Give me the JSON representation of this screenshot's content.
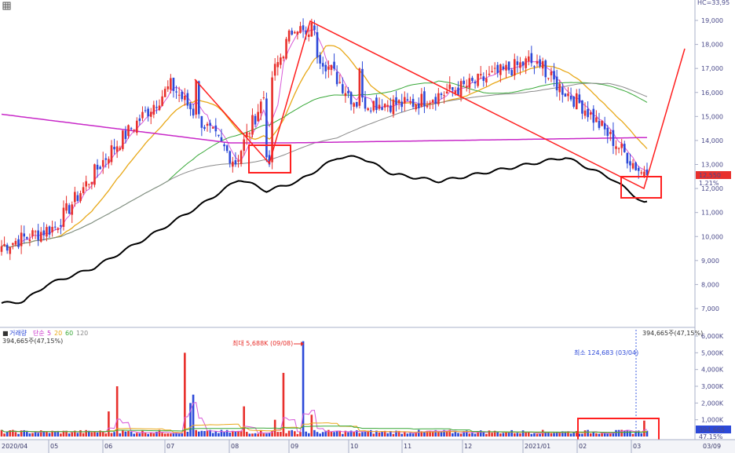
{
  "header": {
    "top_right": "HC=33,95",
    "menu_icon": "grid-menu-icon"
  },
  "volume_header": {
    "label": "거래량",
    "ma_label": "단순",
    "periods": [
      "5",
      "20",
      "60",
      "120"
    ],
    "value_line": "394,665주(47,15%)",
    "right_value": "394,665주(47,15%)"
  },
  "annotations": {
    "max_label": "최대 5,688K (09/08)",
    "min_label": "최소 124,683 (03/04)",
    "price_tag": "12,550",
    "pct_tag": "1.21%",
    "vol_tag": "394,665",
    "vol_pct_tag": "47.15%"
  },
  "colors": {
    "up": "#e8302c",
    "down": "#2c49d8",
    "ma5": "#d85ad8",
    "ma20": "#e8a818",
    "ma60": "#38a838",
    "ma120": "#8a8a8a",
    "magenta_ma": "#c828c8",
    "black_ma": "#000000",
    "annotation_red": "#ff1f1f",
    "axis_text": "#4a4a8a"
  },
  "chart_data": [
    {
      "type": "candlestick",
      "panel": "price",
      "y_ticks": [
        "19,000",
        "18,000",
        "17,000",
        "16,000",
        "15,000",
        "14,000",
        "13,000",
        "12,000",
        "11,000",
        "10,000",
        "9,000",
        "8,000",
        "7,000"
      ],
      "ylim": [
        6500,
        19500
      ],
      "x_labels": [
        "2020/04",
        "05",
        "06",
        "07",
        "08",
        "09",
        "10",
        "11",
        "12",
        "2021/01",
        "02",
        "03",
        "03/09"
      ],
      "last_price": 12550,
      "approx_close_path": [
        {
          "date": "2020/04",
          "value": 9600
        },
        {
          "date": "05",
          "value": 10400
        },
        {
          "date": "06",
          "value": 13500
        },
        {
          "date": "07",
          "value": 16300
        },
        {
          "date": "08",
          "value": 13100
        },
        {
          "date": "09",
          "value": 18900
        },
        {
          "date": "10",
          "value": 15600
        },
        {
          "date": "11",
          "value": 15500
        },
        {
          "date": "12",
          "value": 16300
        },
        {
          "date": "2021/01",
          "value": 17300
        },
        {
          "date": "02",
          "value": 15400
        },
        {
          "date": "03",
          "value": 12550
        }
      ],
      "series": [
        {
          "name": "단순 5",
          "color": "#d85ad8"
        },
        {
          "name": "단순 20",
          "color": "#e8a818"
        },
        {
          "name": "단순 60",
          "color": "#38a838"
        },
        {
          "name": "단순 120",
          "color": "#8a8a8a"
        }
      ],
      "grid": false
    },
    {
      "type": "bar",
      "panel": "volume",
      "y_ticks": [
        "6,000K",
        "5,000K",
        "4,000K",
        "3,000K",
        "2,000K",
        "1,000K"
      ],
      "ylim": [
        0,
        6200
      ],
      "max": {
        "value_k": 5688,
        "date": "09/08"
      },
      "min": {
        "value": 124683,
        "date": "03/04"
      },
      "last_volume": 394665,
      "last_volume_pct": 47.15
    }
  ]
}
